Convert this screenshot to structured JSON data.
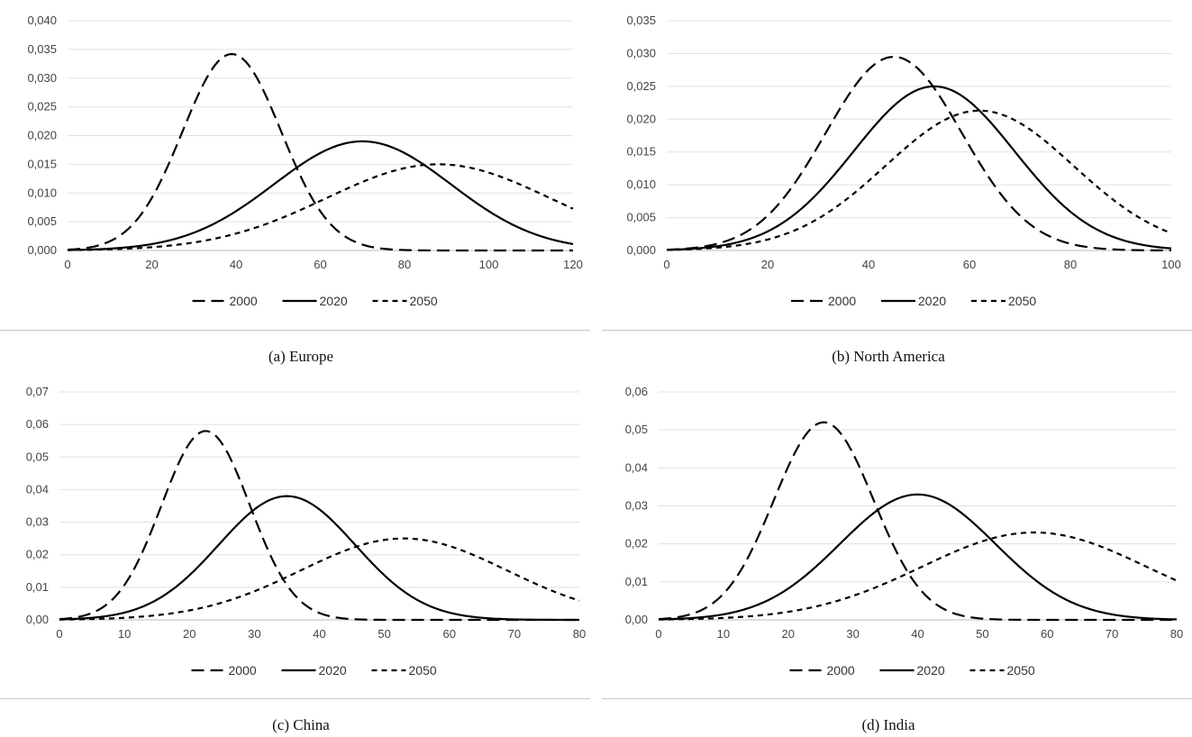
{
  "chart_data": [
    {
      "type": "line",
      "title": "",
      "caption": "(a) Europe",
      "xlim": [
        0,
        120
      ],
      "xticks": [
        0,
        20,
        40,
        60,
        80,
        100,
        120
      ],
      "ylim": [
        0,
        0.04
      ],
      "yticks": [
        "0,000",
        "0,005",
        "0,010",
        "0,015",
        "0,020",
        "0,025",
        "0,030",
        "0,035",
        "0,040"
      ],
      "series": [
        {
          "name": "2000",
          "style": "long-dash",
          "mean": 39,
          "sd": 11.7,
          "peak": 0.0342
        },
        {
          "name": "2020",
          "style": "solid",
          "mean": 70,
          "sd": 21,
          "peak": 0.019
        },
        {
          "name": "2050",
          "style": "short-dash",
          "mean": 88,
          "sd": 26.6,
          "peak": 0.015
        }
      ]
    },
    {
      "type": "line",
      "title": "",
      "caption": "(b) North America",
      "xlim": [
        0,
        100
      ],
      "xticks": [
        0,
        20,
        40,
        60,
        80,
        100
      ],
      "ylim": [
        0,
        0.035
      ],
      "yticks": [
        "0,000",
        "0,005",
        "0,010",
        "0,015",
        "0,020",
        "0,025",
        "0,030",
        "0,035"
      ],
      "series": [
        {
          "name": "2000",
          "style": "long-dash",
          "mean": 45,
          "sd": 13.5,
          "peak": 0.0295
        },
        {
          "name": "2020",
          "style": "solid",
          "mean": 53,
          "sd": 15.9,
          "peak": 0.025
        },
        {
          "name": "2050",
          "style": "short-dash",
          "mean": 62,
          "sd": 18.6,
          "peak": 0.0213
        }
      ]
    },
    {
      "type": "line",
      "title": "",
      "caption": "(c) China",
      "xlim": [
        0,
        80
      ],
      "xticks": [
        0,
        10,
        20,
        30,
        40,
        50,
        60,
        70,
        80
      ],
      "ylim": [
        0,
        0.07
      ],
      "yticks": [
        "0,00",
        "0,01",
        "0,02",
        "0,03",
        "0,04",
        "0,05",
        "0,06",
        "0,07"
      ],
      "series": [
        {
          "name": "2000",
          "style": "long-dash",
          "mean": 22.5,
          "sd": 6.8,
          "peak": 0.058
        },
        {
          "name": "2020",
          "style": "solid",
          "mean": 35,
          "sd": 10.5,
          "peak": 0.038
        },
        {
          "name": "2050",
          "style": "short-dash",
          "mean": 53,
          "sd": 15.9,
          "peak": 0.025
        }
      ]
    },
    {
      "type": "line",
      "title": "",
      "caption": "(d) India",
      "xlim": [
        0,
        80
      ],
      "xticks": [
        0,
        10,
        20,
        30,
        40,
        50,
        60,
        70,
        80
      ],
      "ylim": [
        0,
        0.06
      ],
      "yticks": [
        "0,00",
        "0,01",
        "0,02",
        "0,03",
        "0,04",
        "0,05",
        "0,06"
      ],
      "series": [
        {
          "name": "2000",
          "style": "long-dash",
          "mean": 25.5,
          "sd": 7.7,
          "peak": 0.052
        },
        {
          "name": "2020",
          "style": "solid",
          "mean": 40,
          "sd": 12,
          "peak": 0.033
        },
        {
          "name": "2050",
          "style": "short-dash",
          "mean": 58,
          "sd": 17.4,
          "peak": 0.023
        }
      ]
    }
  ]
}
